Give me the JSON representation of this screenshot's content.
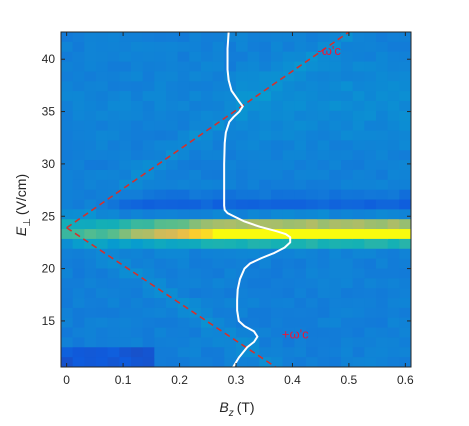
{
  "chart_data": {
    "type": "heatmap",
    "xlabel": {
      "main": "B",
      "sub": "z",
      "unit": "(T)"
    },
    "ylabel": {
      "main": "E",
      "sub": "⊥",
      "unit": "(V/cm)"
    },
    "xlim": [
      -0.01,
      0.61
    ],
    "ylim": [
      42.6,
      10.6
    ],
    "y_reversed": true,
    "x_ticks": [
      "0",
      "0.1",
      "0.2",
      "0.3",
      "0.4",
      "0.5",
      "0.6"
    ],
    "x_tick_values": [
      0,
      0.1,
      0.2,
      0.3,
      0.4,
      0.5,
      0.6
    ],
    "y_ticks": [
      "15",
      "20",
      "25",
      "30",
      "35",
      "40"
    ],
    "y_tick_values": [
      15,
      20,
      25,
      30,
      35,
      40
    ],
    "colormap": "parula",
    "colors": {
      "cutoff_lines": "#d2322d",
      "profile_curve": "#ffffff",
      "background": "#1a50b4"
    },
    "heatmap": {
      "x_bins": 30,
      "y_bins": 34,
      "bright_band_center_E": 23.5,
      "dark_band_center_E": 26.2,
      "features": "bright band near E=23.5 V/cm intensifying with B; depleted band near E=26 V/cm; faint diagonal lines following ±ω'c"
    },
    "lines": [
      {
        "name": "+ω'c",
        "style": "dashed",
        "x": [
          0,
          0.37
        ],
        "y": [
          23.9,
          10.6
        ]
      },
      {
        "name": "-ω'c",
        "style": "dashed",
        "x": [
          0,
          0.5
        ],
        "y": [
          23.9,
          42.6
        ]
      }
    ],
    "profile_curve": {
      "style": "solid",
      "E": [
        10.6,
        11.5,
        12.5,
        13.0,
        13.5,
        14.0,
        14.5,
        15.0,
        16.0,
        17.0,
        18.0,
        19.0,
        20.0,
        20.5,
        21.0,
        21.5,
        22.0,
        22.5,
        23.0,
        23.3,
        23.6,
        24.0,
        24.5,
        25.0,
        25.3,
        25.6,
        26.0,
        27.0,
        28.0,
        30.0,
        32.0,
        33.0,
        34.0,
        34.5,
        35.0,
        35.5,
        36.0,
        37.0,
        38.0,
        39.0,
        40.0,
        41.0,
        42.6
      ],
      "B": [
        0.295,
        0.305,
        0.32,
        0.332,
        0.338,
        0.332,
        0.315,
        0.305,
        0.302,
        0.302,
        0.303,
        0.307,
        0.315,
        0.325,
        0.345,
        0.368,
        0.386,
        0.396,
        0.396,
        0.388,
        0.37,
        0.342,
        0.315,
        0.296,
        0.285,
        0.28,
        0.279,
        0.279,
        0.279,
        0.279,
        0.28,
        0.282,
        0.288,
        0.296,
        0.306,
        0.312,
        0.305,
        0.292,
        0.287,
        0.285,
        0.285,
        0.285,
        0.287
      ]
    },
    "annotations": [
      {
        "text": "+ω'c",
        "anchor_B": 0.405,
        "anchor_E": 13.3
      },
      {
        "text": "-ω'c",
        "anchor_B": 0.465,
        "anchor_E": 40.4
      }
    ]
  }
}
